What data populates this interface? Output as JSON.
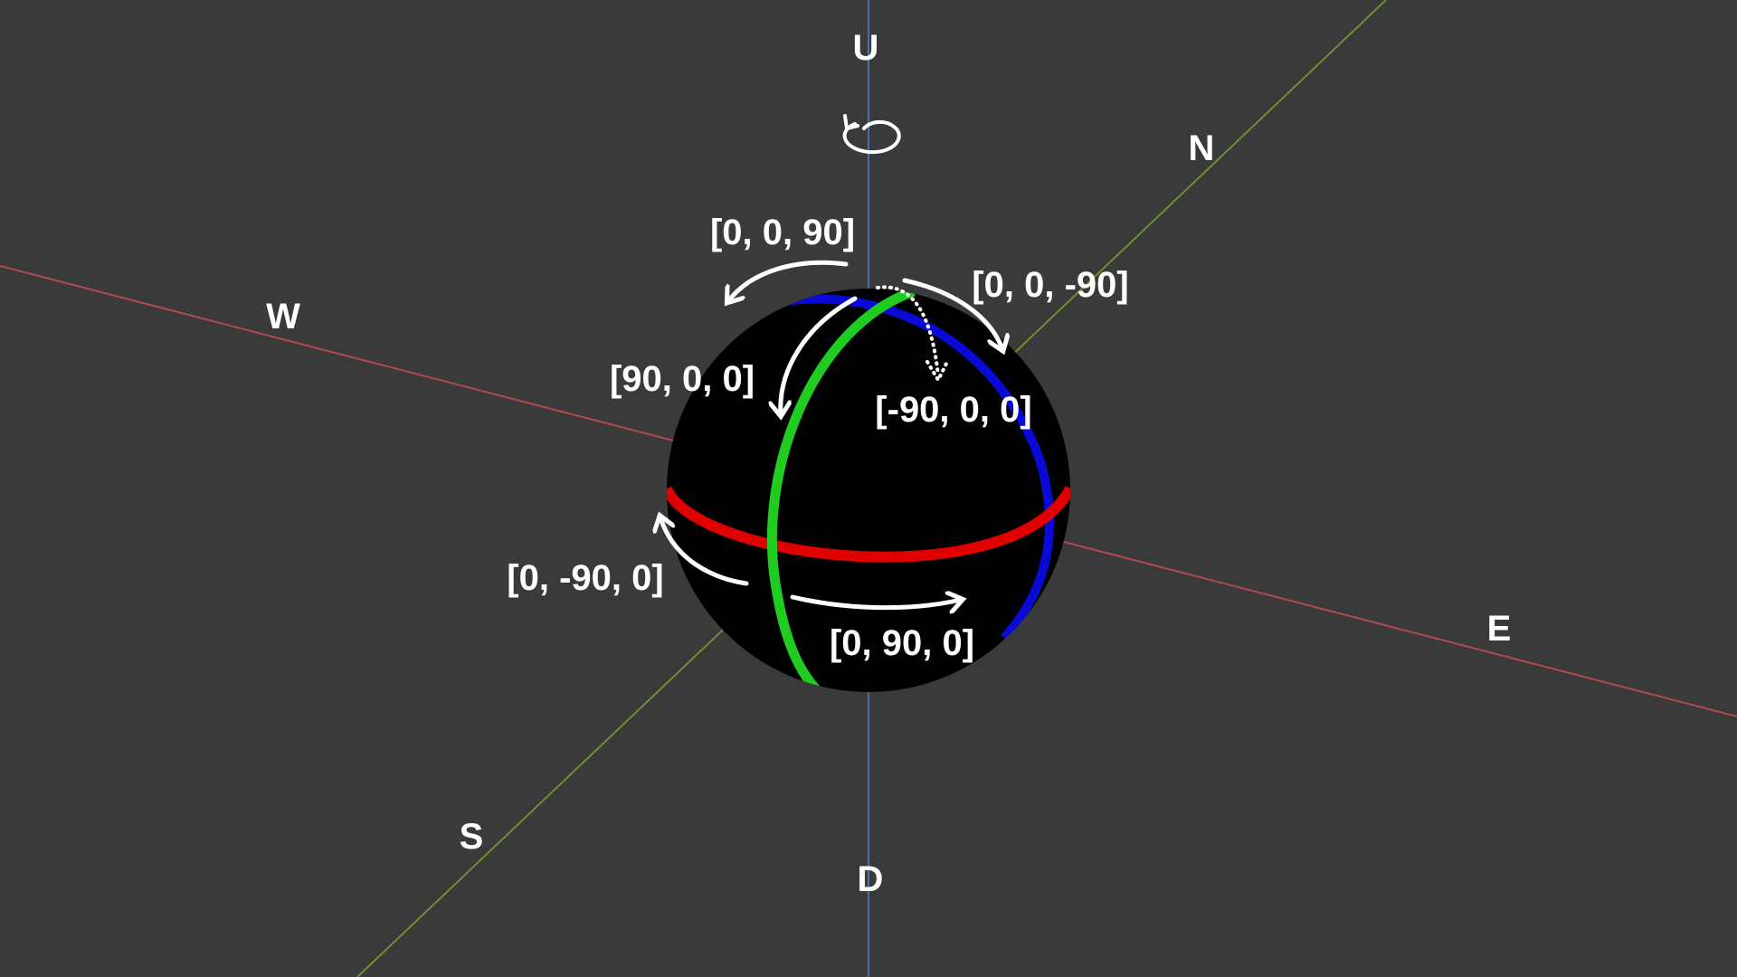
{
  "axes": {
    "up": "U",
    "down": "D",
    "north": "N",
    "south": "S",
    "east": "E",
    "west": "W"
  },
  "rotations": {
    "roll_left": "[0, 0, 90]",
    "roll_right": "[0, 0, -90]",
    "pitch_down": "[90, 0, 0]",
    "pitch_up": "[-90, 0, 0]",
    "yaw_left": "[0, -90, 0]",
    "yaw_right": "[0, 90, 0]"
  },
  "colors": {
    "background": "#3a3a3a",
    "east_west_axis": "#b04a4f",
    "north_south_axis": "#6e8f2e",
    "up_down_axis": "#4d6fa8",
    "sphere": "#000000",
    "equator_ring": "#e00000",
    "meridian_ring": "#1fcc1f",
    "tilted_ring": "#0a0ad6",
    "annotation": "#ffffff"
  }
}
